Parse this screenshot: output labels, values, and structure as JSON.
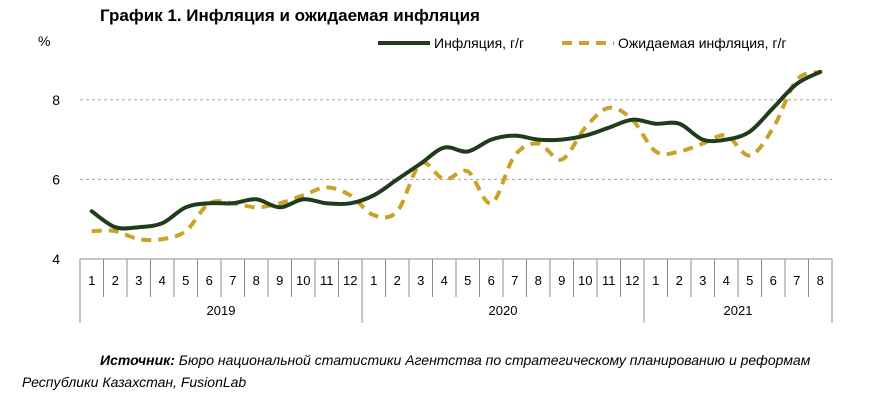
{
  "title": "График 1. Инфляция и ожидаемая инфляция",
  "source": {
    "label": "Источник:",
    "text": "Бюро национальной статистики Агентства по стратегическому планированию и реформам Республики Казахстан, FusionLab"
  },
  "colors": {
    "inflation": "#1f3d1a",
    "expected": "#c9a227",
    "grid": "#a6a6a6",
    "axis": "#8c8c8c"
  },
  "chart_data": {
    "type": "line",
    "ylabel": "%",
    "ylim": [
      4,
      9
    ],
    "yticks": [
      4,
      6,
      8
    ],
    "grid": true,
    "legend_position": "top-right",
    "x": [
      "1",
      "2",
      "3",
      "4",
      "5",
      "6",
      "7",
      "8",
      "9",
      "10",
      "11",
      "12",
      "1",
      "2",
      "3",
      "4",
      "5",
      "6",
      "7",
      "8",
      "9",
      "10",
      "11",
      "12",
      "1",
      "2",
      "3",
      "4",
      "5",
      "6",
      "7",
      "8"
    ],
    "years": [
      {
        "label": "2019",
        "count": 12
      },
      {
        "label": "2020",
        "count": 12
      },
      {
        "label": "2021",
        "count": 8
      }
    ],
    "series": [
      {
        "name": "Инфляция, г/г",
        "style": "solid",
        "values": [
          5.2,
          4.8,
          4.8,
          4.9,
          5.3,
          5.4,
          5.4,
          5.5,
          5.3,
          5.5,
          5.4,
          5.4,
          5.6,
          6.0,
          6.4,
          6.8,
          6.7,
          7.0,
          7.1,
          7.0,
          7.0,
          7.1,
          7.3,
          7.5,
          7.4,
          7.4,
          7.0,
          7.0,
          7.2,
          7.8,
          8.4,
          8.7
        ]
      },
      {
        "name": "Ожидаемая инфляция, г/г",
        "style": "dashed",
        "values": [
          4.7,
          4.7,
          4.5,
          4.5,
          4.7,
          5.4,
          5.4,
          5.3,
          5.4,
          5.6,
          5.8,
          5.6,
          5.1,
          5.2,
          6.4,
          6.0,
          6.2,
          5.4,
          6.6,
          6.9,
          6.5,
          7.3,
          7.8,
          7.5,
          6.7,
          6.7,
          6.9,
          7.1,
          6.6,
          7.3,
          8.5,
          8.7
        ]
      }
    ]
  }
}
